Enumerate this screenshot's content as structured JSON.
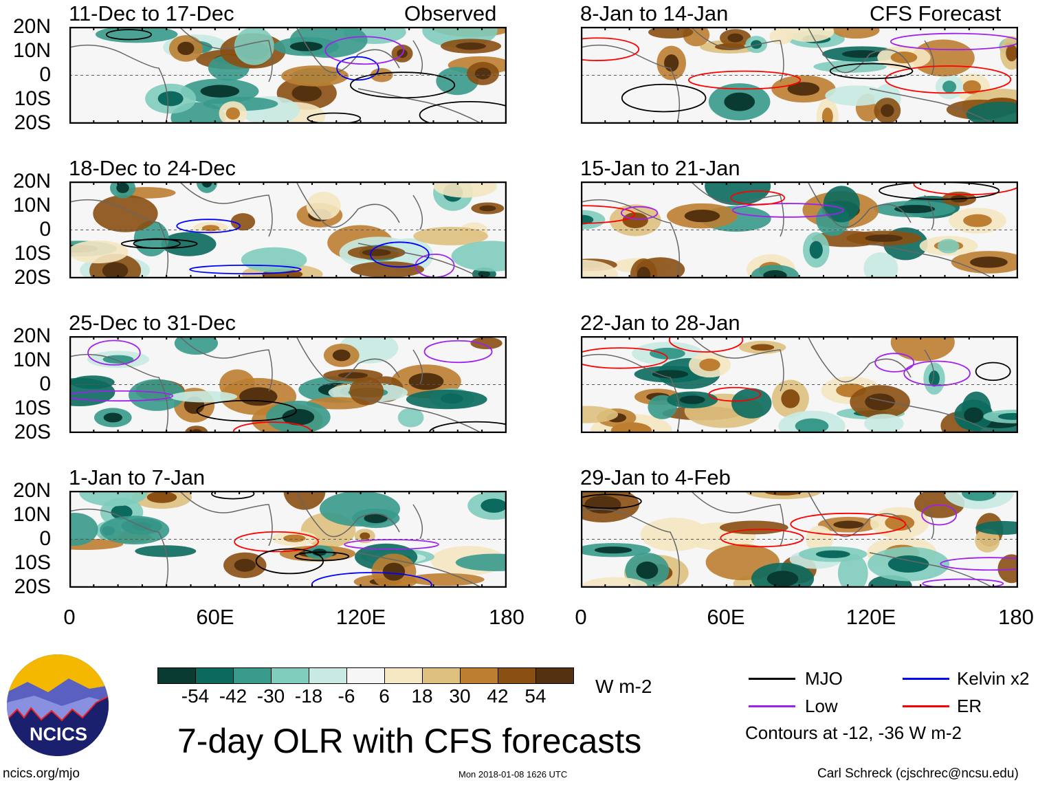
{
  "left_header": "Observed",
  "right_header": "CFS Forecast",
  "panels_left": [
    "11-Dec to 17-Dec",
    "18-Dec to 24-Dec",
    "25-Dec to 31-Dec",
    "1-Jan to 7-Jan"
  ],
  "panels_right": [
    "8-Jan to 14-Jan",
    "15-Jan to 21-Jan",
    "22-Jan to 28-Jan",
    "29-Jan to 4-Feb"
  ],
  "y_ticks": [
    "20N",
    "10N",
    "0",
    "10S",
    "20S"
  ],
  "x_ticks": [
    "0",
    "60E",
    "120E",
    "180"
  ],
  "colorbar": {
    "labels": [
      "-54",
      "-42",
      "-30",
      "-18",
      "-6",
      "6",
      "18",
      "30",
      "42",
      "54"
    ],
    "colors": [
      "#0a3b33",
      "#0b6a5d",
      "#399a8c",
      "#80ccbd",
      "#c8eae3",
      "#f6f6f6",
      "#f5e7c2",
      "#dfc17f",
      "#bd7e31",
      "#8a4f12",
      "#55320f"
    ],
    "units": "W m-2"
  },
  "title": "7-day OLR with CFS forecasts",
  "legend": {
    "items": [
      {
        "label": "MJO",
        "color": "#000000"
      },
      {
        "label": "Kelvin x2",
        "color": "#0000ff"
      },
      {
        "label": "Low",
        "color": "#a020f0"
      },
      {
        "label": "ER",
        "color": "#ff0000"
      }
    ],
    "note": "Contours at -12, -36 W m-2"
  },
  "logo_text": "NCICS",
  "footer": {
    "url": "ncics.org/mjo",
    "timestamp": "Mon 2018-01-08 1626 UTC",
    "author": "Carl Schreck (cjschrec@ncsu.edu)"
  }
}
